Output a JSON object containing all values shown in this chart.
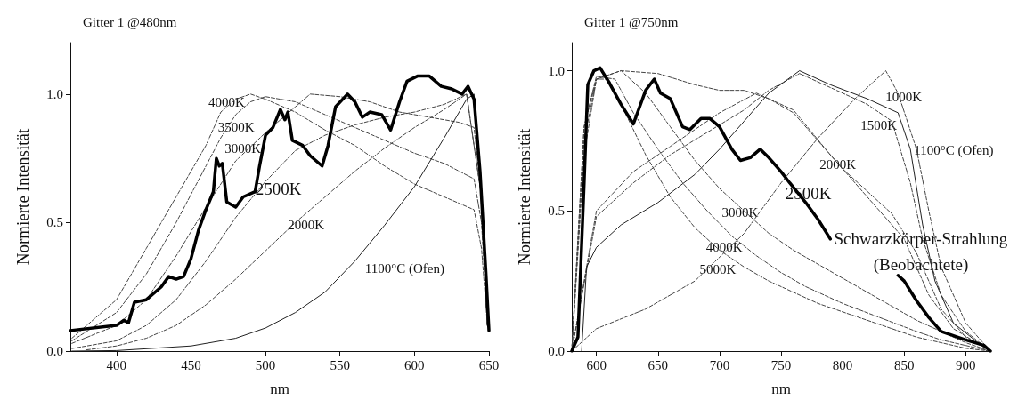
{
  "chart_data": [
    {
      "type": "line",
      "title": "Gitter 1 @480nm",
      "xlabel": "nm",
      "ylabel": "Normierte Intensität",
      "xlim": [
        369,
        650
      ],
      "ylim": [
        0,
        1.2
      ],
      "xticks": [
        400,
        450,
        500,
        550,
        600,
        650
      ],
      "yticks": [
        {
          "value": 0,
          "label": "0.0"
        },
        {
          "value": 0.5,
          "label": "0.5"
        },
        {
          "value": 1,
          "label": "1.0"
        }
      ],
      "grid": false,
      "legend": false,
      "marker": "none",
      "series": [
        {
          "name": "4000K",
          "color": "#444444",
          "line_style": "dashed",
          "x": [
            370,
            400,
            420,
            440,
            460,
            470,
            480,
            490,
            500,
            520,
            540,
            560,
            580,
            600,
            620,
            640,
            645,
            649
          ],
          "values": [
            0.05,
            0.2,
            0.4,
            0.6,
            0.8,
            0.93,
            0.98,
            1.0,
            0.98,
            0.93,
            0.86,
            0.8,
            0.72,
            0.65,
            0.6,
            0.55,
            0.4,
            0.1
          ]
        },
        {
          "name": "3500K",
          "color": "#444444",
          "line_style": "dashed",
          "x": [
            370,
            400,
            420,
            440,
            460,
            470,
            480,
            490,
            500,
            520,
            540,
            560,
            580,
            600,
            620,
            640,
            645,
            649
          ],
          "values": [
            0.04,
            0.15,
            0.3,
            0.5,
            0.72,
            0.83,
            0.92,
            0.97,
            0.99,
            0.97,
            0.92,
            0.87,
            0.82,
            0.77,
            0.73,
            0.67,
            0.5,
            0.1
          ]
        },
        {
          "name": "3000K",
          "color": "#444444",
          "line_style": "dashed",
          "x": [
            370,
            400,
            420,
            440,
            460,
            480,
            500,
            520,
            530,
            550,
            570,
            590,
            610,
            630,
            640,
            645,
            649
          ],
          "values": [
            0.03,
            0.1,
            0.2,
            0.37,
            0.56,
            0.74,
            0.85,
            0.95,
            1.0,
            0.99,
            0.97,
            0.93,
            0.91,
            0.89,
            0.87,
            0.6,
            0.1
          ]
        },
        {
          "color": "#444444",
          "line_style": "dashed",
          "x": [
            370,
            400,
            420,
            440,
            460,
            480,
            500,
            520,
            540,
            560,
            580,
            600,
            620,
            635,
            645,
            649
          ],
          "values": [
            0.01,
            0.04,
            0.1,
            0.2,
            0.35,
            0.52,
            0.66,
            0.78,
            0.84,
            0.88,
            0.91,
            0.93,
            0.96,
            1.0,
            0.6,
            0.1
          ]
        },
        {
          "name": "2000K",
          "color": "#444444",
          "line_style": "dashed",
          "x": [
            380,
            400,
            420,
            440,
            460,
            480,
            500,
            520,
            540,
            560,
            580,
            600,
            620,
            635,
            645,
            649
          ],
          "values": [
            0.005,
            0.02,
            0.05,
            0.1,
            0.18,
            0.28,
            0.39,
            0.5,
            0.6,
            0.7,
            0.79,
            0.87,
            0.94,
            1.0,
            0.6,
            0.1
          ]
        },
        {
          "name": "1100°C (Ofen)",
          "color": "#222222",
          "line_style": "solid",
          "x": [
            370,
            400,
            450,
            480,
            500,
            520,
            540,
            560,
            580,
            600,
            620,
            635,
            640,
            645,
            649
          ],
          "values": [
            0,
            0.002,
            0.02,
            0.05,
            0.09,
            0.15,
            0.23,
            0.35,
            0.49,
            0.64,
            0.83,
            0.98,
            1.0,
            0.6,
            0.1
          ]
        },
        {
          "name": "2500K",
          "color": "#000000",
          "line_style": "solid",
          "x": [
            369,
            400,
            405,
            408,
            412,
            420,
            430,
            435,
            440,
            445,
            450,
            455,
            460,
            465,
            467,
            469,
            471,
            474,
            480,
            485,
            493,
            496,
            500,
            505,
            510,
            513,
            515,
            518,
            525,
            530,
            538,
            542,
            547,
            555,
            560,
            565,
            570,
            578,
            584,
            590,
            595,
            602,
            610,
            618,
            625,
            632,
            636,
            640,
            644,
            648,
            650
          ],
          "values": [
            0.08,
            0.1,
            0.12,
            0.11,
            0.19,
            0.2,
            0.25,
            0.29,
            0.28,
            0.29,
            0.36,
            0.47,
            0.55,
            0.62,
            0.75,
            0.72,
            0.73,
            0.58,
            0.56,
            0.6,
            0.62,
            0.72,
            0.84,
            0.87,
            0.94,
            0.9,
            0.93,
            0.82,
            0.8,
            0.76,
            0.72,
            0.8,
            0.95,
            1.0,
            0.97,
            0.91,
            0.93,
            0.92,
            0.86,
            0.97,
            1.05,
            1.07,
            1.07,
            1.03,
            1.02,
            1.0,
            1.03,
            0.98,
            0.7,
            0.3,
            0.08
          ]
        }
      ],
      "tick_labels": true
    },
    {
      "type": "line",
      "title": "Gitter 1 @750nm",
      "xlabel": "nm",
      "ylabel": "Normierte Intensität",
      "xlim": [
        580,
        920
      ],
      "ylim": [
        0,
        1.1
      ],
      "xticks": [
        600,
        650,
        700,
        750,
        800,
        850,
        900
      ],
      "yticks": [
        {
          "value": 0,
          "label": "0.0"
        },
        {
          "value": 0.5,
          "label": "0.5"
        },
        {
          "value": 1,
          "label": "1.0"
        }
      ],
      "grid": false,
      "legend": false,
      "marker": "none",
      "series": [
        {
          "name": "5000K",
          "color": "#444444",
          "line_style": "dashed",
          "x": [
            580,
            590,
            600,
            610,
            620,
            640,
            660,
            680,
            700,
            720,
            740,
            760,
            780,
            800,
            820,
            840,
            860,
            880,
            900,
            920
          ],
          "values": [
            0,
            0.8,
            0.97,
            0.97,
            0.88,
            0.7,
            0.55,
            0.44,
            0.36,
            0.3,
            0.25,
            0.21,
            0.17,
            0.14,
            0.11,
            0.08,
            0.05,
            0.03,
            0.01,
            0
          ]
        },
        {
          "name": "4000K",
          "color": "#444444",
          "line_style": "dashed",
          "x": [
            580,
            590,
            600,
            615,
            630,
            650,
            670,
            690,
            710,
            730,
            750,
            770,
            800,
            830,
            860,
            880,
            900,
            920
          ],
          "values": [
            0,
            0.8,
            0.98,
            0.97,
            0.85,
            0.72,
            0.6,
            0.5,
            0.41,
            0.34,
            0.28,
            0.23,
            0.17,
            0.12,
            0.07,
            0.04,
            0.02,
            0
          ]
        },
        {
          "name": "3000K",
          "color": "#444444",
          "line_style": "dashed",
          "x": [
            580,
            590,
            600,
            620,
            640,
            660,
            680,
            700,
            720,
            740,
            760,
            780,
            800,
            820,
            840,
            860,
            880,
            900,
            920
          ],
          "values": [
            0,
            0.75,
            0.97,
            1.0,
            0.92,
            0.8,
            0.68,
            0.58,
            0.5,
            0.42,
            0.36,
            0.31,
            0.26,
            0.21,
            0.16,
            0.11,
            0.07,
            0.03,
            0
          ]
        },
        {
          "name": "2000K",
          "color": "#444444",
          "line_style": "dashed",
          "x": [
            580,
            590,
            600,
            620,
            650,
            680,
            700,
            720,
            740,
            760,
            780,
            800,
            820,
            840,
            860,
            880,
            900,
            920
          ],
          "values": [
            0,
            0.7,
            0.97,
            1.0,
            0.99,
            0.95,
            0.93,
            0.93,
            0.9,
            0.85,
            0.75,
            0.65,
            0.57,
            0.49,
            0.35,
            0.15,
            0.05,
            0
          ]
        },
        {
          "color": "#444444",
          "line_style": "dashed",
          "x": [
            580,
            600,
            630,
            660,
            700,
            730,
            760,
            790,
            820,
            850,
            870,
            890,
            920
          ],
          "values": [
            0,
            0.5,
            0.64,
            0.73,
            0.85,
            0.92,
            0.86,
            0.7,
            0.55,
            0.4,
            0.2,
            0.08,
            0
          ]
        },
        {
          "name": "1500K",
          "color": "#444444",
          "line_style": "dashed",
          "x": [
            580,
            600,
            630,
            660,
            690,
            720,
            740,
            765,
            790,
            820,
            840,
            855,
            865,
            880,
            900,
            920
          ],
          "values": [
            0,
            0.48,
            0.6,
            0.7,
            0.78,
            0.86,
            0.93,
            0.99,
            0.94,
            0.88,
            0.82,
            0.6,
            0.4,
            0.2,
            0.07,
            0
          ]
        },
        {
          "name": "1000K",
          "color": "#444444",
          "line_style": "dashed",
          "x": [
            580,
            600,
            640,
            680,
            720,
            750,
            780,
            810,
            835,
            845,
            860,
            870,
            880,
            900,
            920
          ],
          "values": [
            0,
            0.08,
            0.15,
            0.25,
            0.42,
            0.6,
            0.76,
            0.9,
            1.0,
            0.92,
            0.72,
            0.5,
            0.3,
            0.1,
            0
          ]
        },
        {
          "name": "1100°C (Ofen)",
          "color": "#222222",
          "line_style": "solid",
          "x": [
            588,
            592,
            600,
            620,
            650,
            680,
            700,
            720,
            740,
            765,
            790,
            820,
            845,
            855,
            865,
            875,
            890,
            910,
            920
          ],
          "values": [
            0,
            0.3,
            0.37,
            0.45,
            0.53,
            0.63,
            0.72,
            0.82,
            0.92,
            1.0,
            0.95,
            0.9,
            0.85,
            0.72,
            0.45,
            0.25,
            0.1,
            0.03,
            0
          ]
        },
        {
          "name": "2500K",
          "color": "#000000",
          "line_style": "solid",
          "x": [
            580,
            585,
            590,
            593,
            598,
            603,
            610,
            620,
            630,
            640,
            647,
            652,
            660,
            670,
            676,
            685,
            692,
            700,
            710,
            717,
            725,
            733,
            740,
            750,
            757,
            770,
            780,
            790,
            815,
            845,
            850,
            860,
            870,
            880,
            900,
            915,
            920
          ],
          "values": [
            0,
            0.05,
            0.6,
            0.95,
            1.0,
            1.01,
            0.96,
            0.88,
            0.81,
            0.93,
            0.97,
            0.92,
            0.9,
            0.8,
            0.79,
            0.83,
            0.83,
            0.8,
            0.72,
            0.68,
            0.69,
            0.72,
            0.69,
            0.64,
            0.6,
            0.53,
            0.47,
            0.4,
            null,
            0.27,
            0.25,
            0.18,
            0.12,
            0.07,
            0.04,
            0.02,
            0
          ]
        }
      ],
      "annotations": [
        "Schwarzkörper-Strahlung",
        "(Beobachtete)"
      ]
    }
  ]
}
